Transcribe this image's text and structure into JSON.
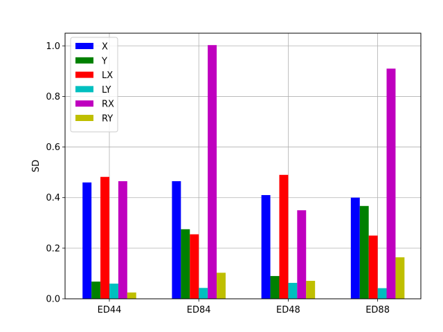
{
  "chart_data": {
    "type": "bar",
    "title": "",
    "xlabel": "",
    "ylabel": "SD",
    "ylim": [
      0,
      1.05
    ],
    "yticks": [
      "0.0",
      "0.2",
      "0.4",
      "0.6",
      "0.8",
      "1.0"
    ],
    "grid": true,
    "legend_position": "top-left",
    "categories": [
      "ED44",
      "ED84",
      "ED48",
      "ED88"
    ],
    "series": [
      {
        "name": "X",
        "color": "#0000ff",
        "values": [
          0.46,
          0.465,
          0.41,
          0.4
        ]
      },
      {
        "name": "Y",
        "color": "#008000",
        "values": [
          0.068,
          0.275,
          0.09,
          0.367
        ]
      },
      {
        "name": "LX",
        "color": "#ff0000",
        "values": [
          0.482,
          0.255,
          0.49,
          0.25
        ]
      },
      {
        "name": "LY",
        "color": "#00bfbf",
        "values": [
          0.06,
          0.043,
          0.063,
          0.042
        ]
      },
      {
        "name": "RX",
        "color": "#bf00bf",
        "values": [
          0.465,
          1.003,
          0.35,
          0.91
        ]
      },
      {
        "name": "RY",
        "color": "#bfbf00",
        "values": [
          0.025,
          0.103,
          0.071,
          0.164
        ]
      }
    ]
  }
}
